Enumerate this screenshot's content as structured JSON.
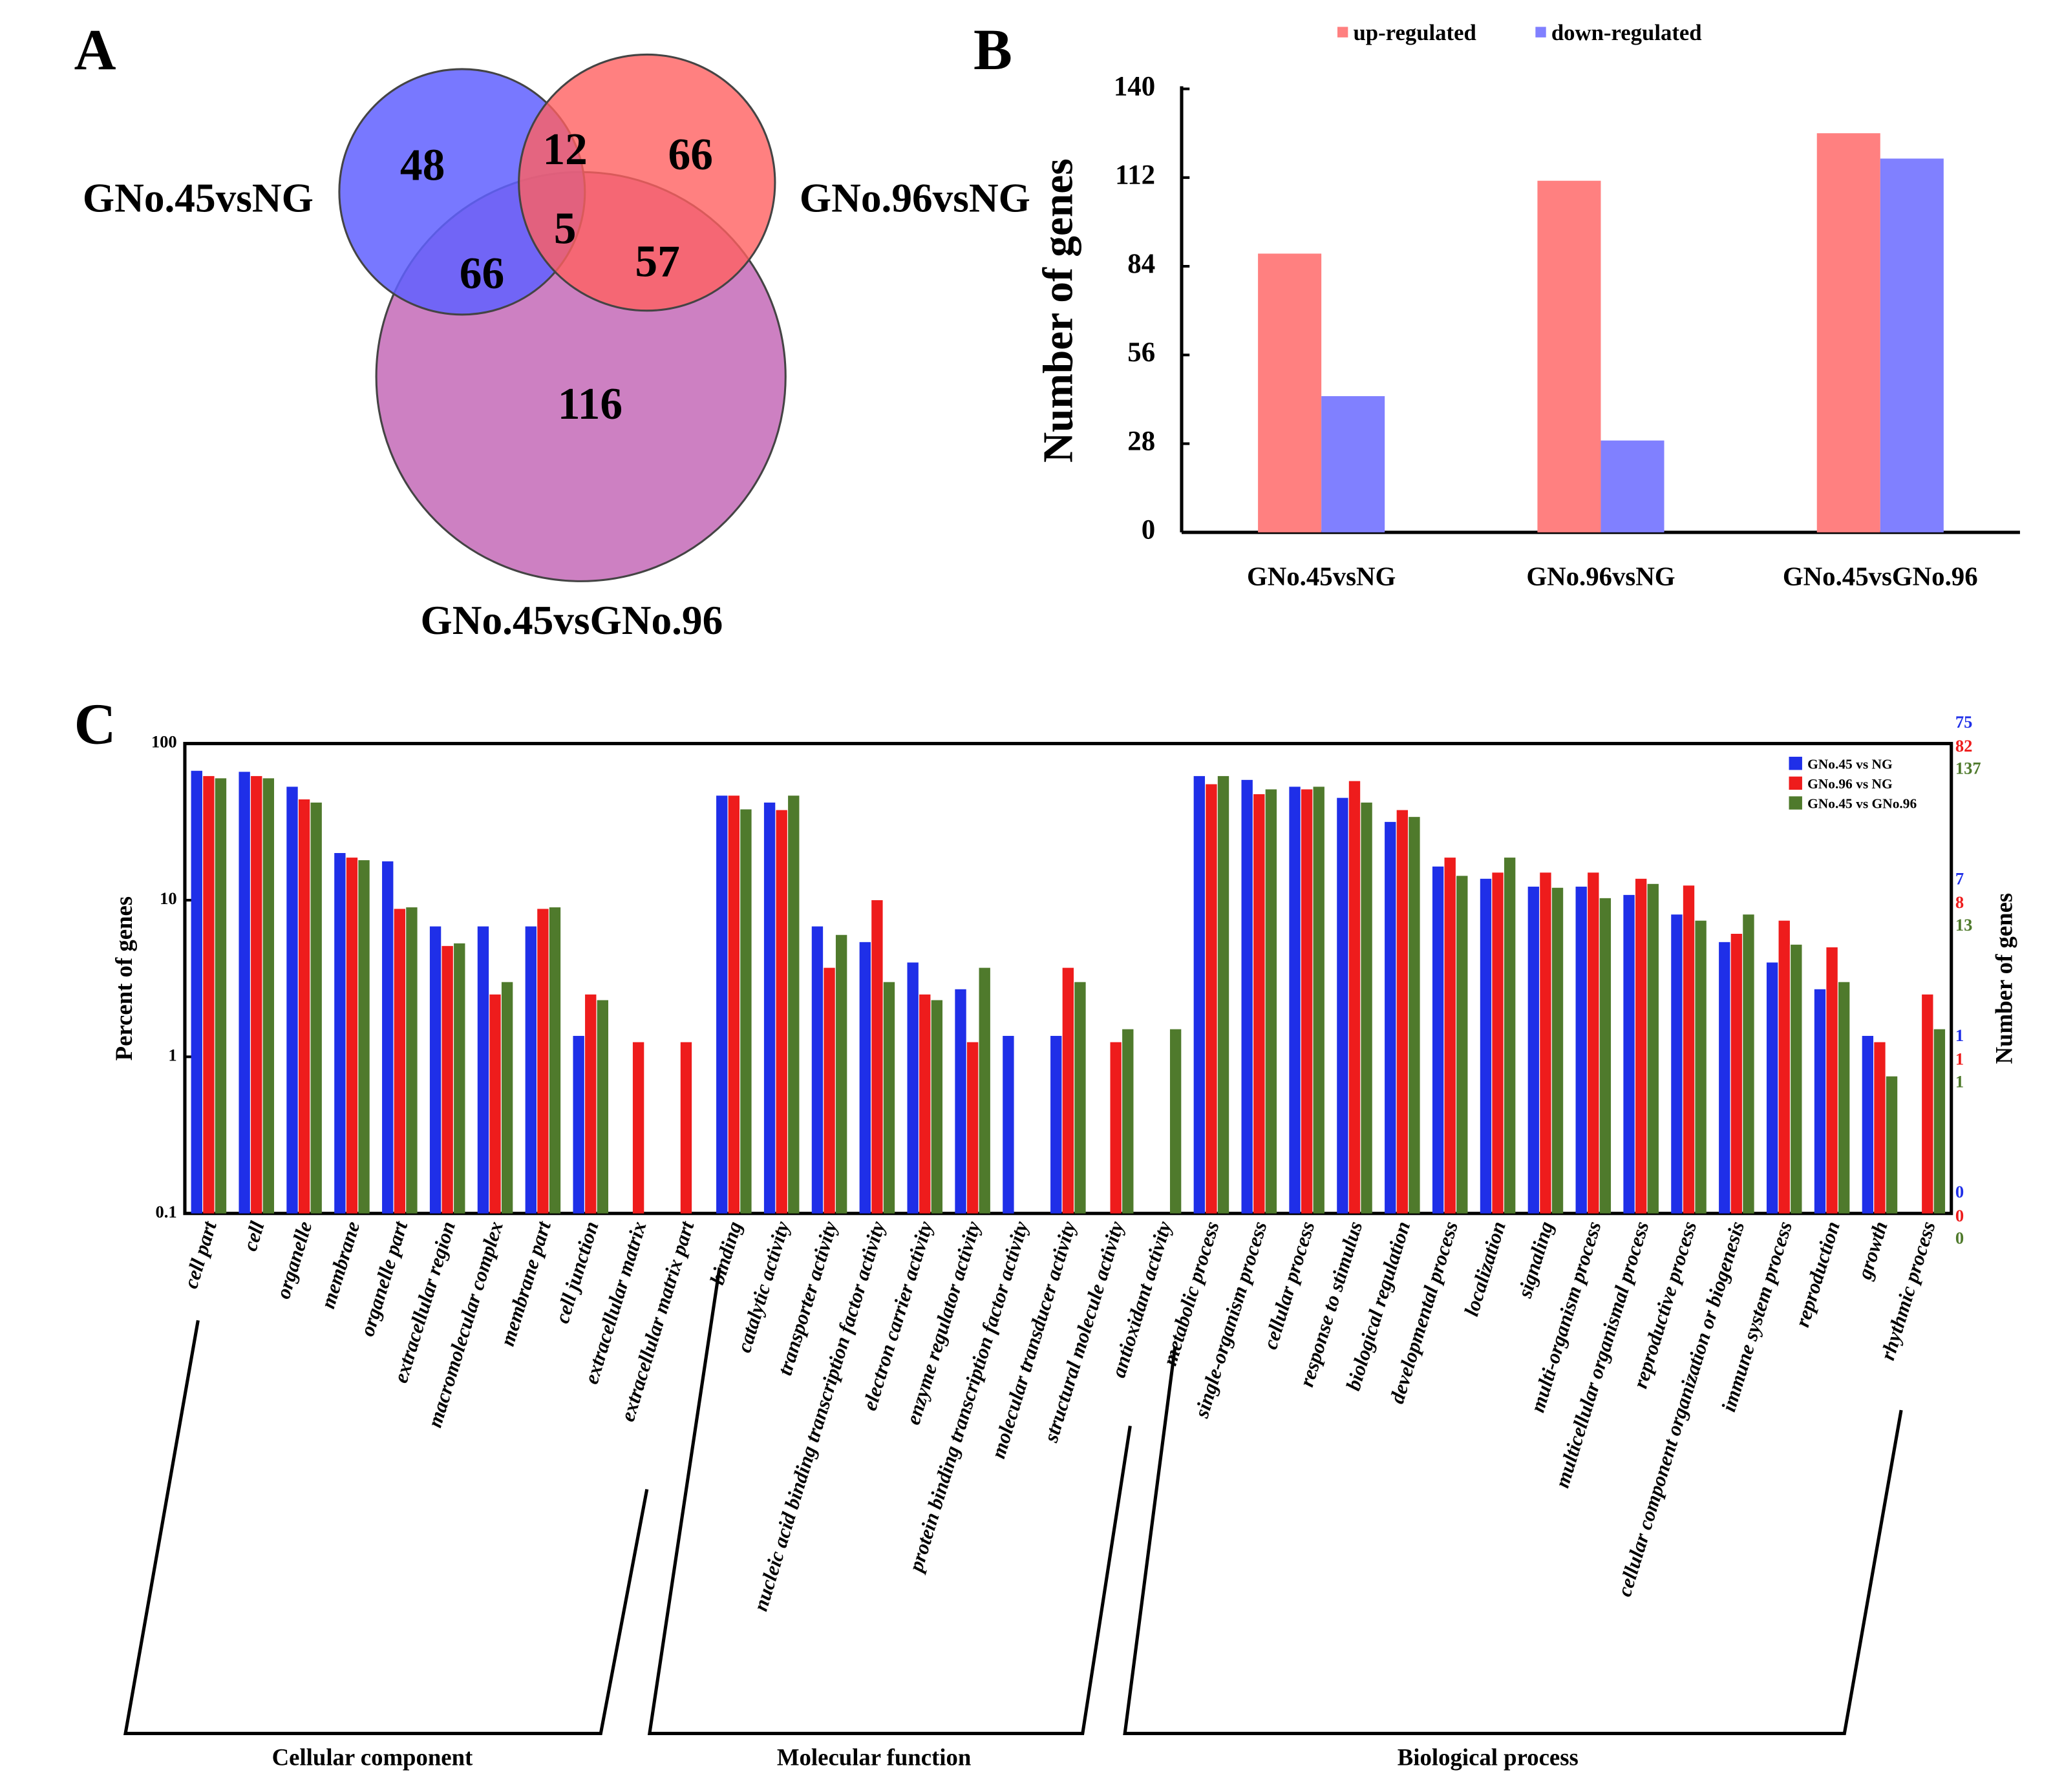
{
  "chart_data": [
    {
      "type": "venn",
      "panel": "A",
      "sets": [
        {
          "name": "GNo.45vsNG",
          "color": "#6060ff"
        },
        {
          "name": "GNo.96vsNG",
          "color": "#ff6060"
        },
        {
          "name": "GNo.45vsGNo.96",
          "color": "#b84aa8"
        }
      ],
      "values": [
        48,
        66,
        116,
        12,
        66,
        57,
        5
      ]
    },
    {
      "type": "bar",
      "panel": "B",
      "ylabel": "Number of genes",
      "categories": [
        "GNo.45vsNG",
        "GNo.96vsNG",
        "GNo.45vsGNo.96"
      ],
      "series": [
        {
          "name": "up-regulated",
          "color": "#ff8080",
          "values": [
            88,
            111,
            126
          ]
        },
        {
          "name": "down-regulated",
          "color": "#8080ff",
          "values": [
            43,
            29,
            118
          ]
        }
      ],
      "ylim": [
        0,
        140
      ],
      "yticks": [
        0,
        28,
        56,
        84,
        112,
        140
      ],
      "legend": "top"
    },
    {
      "type": "bar",
      "panel": "C",
      "ylabel": "Percent of genes",
      "y2label": "Number of genes",
      "log_scale": true,
      "categories": [
        "cell part",
        "cell",
        "organelle",
        "membrane",
        "organelle part",
        "extracellular region",
        "macromolecular complex",
        "membrane part",
        "cell junction",
        "extracellular matrix",
        "extracellular matrix part",
        "binding",
        "catalytic activity",
        "transporter activity",
        "nucleic acid binding transcription factor activity",
        "electron carrier activity",
        "enzyme regulator activity",
        "protein binding transcription factor activity",
        "molecular transducer activity",
        "structural molecule activity",
        "antioxidant activity",
        "metabolic process",
        "single-organism process",
        "cellular process",
        "response to stimulus",
        "biological regulation",
        "developmental process",
        "localization",
        "signaling",
        "multi-organism process",
        "multicellular organismal process",
        "reproductive process",
        "cellular component organization or biogenesis",
        "immune system process",
        "reproduction",
        "growth",
        "rhythmic process"
      ],
      "groups": [
        "Cellular component",
        "Molecular function",
        "Biological process"
      ],
      "series": [
        {
          "name": "GNo.45 vs NG",
          "color": "#1f2fe8",
          "y2ticks": [
            0,
            1,
            7,
            75
          ],
          "values": [
            67,
            66,
            53,
            20,
            17.7,
            6.8,
            6.8,
            6.8,
            1.36,
            null,
            null,
            46.5,
            42,
            6.8,
            5.4,
            4,
            2.7,
            1.36,
            1.36,
            null,
            null,
            62,
            58.6,
            53,
            45,
            31.6,
            16.4,
            13.7,
            12.2,
            12.2,
            10.8,
            8.1,
            5.4,
            4,
            2.7,
            1.36,
            null
          ]
        },
        {
          "name": "GNo.96 vs NG",
          "color": "#ee1c1c",
          "y2ticks": [
            0,
            1,
            8,
            82
          ],
          "values": [
            62,
            62,
            44,
            18.7,
            8.8,
            5.1,
            2.5,
            8.8,
            2.5,
            1.24,
            1.24,
            46.5,
            37.6,
            3.7,
            10,
            2.5,
            1.24,
            null,
            3.7,
            1.24,
            null,
            55,
            47.5,
            51,
            57.6,
            37.6,
            18.7,
            15,
            15,
            15,
            13.7,
            12.4,
            6.1,
            7.4,
            5,
            1.24,
            2.5
          ]
        },
        {
          "name": "GNo.45 vs GNo.96",
          "color": "#4f7a2c",
          "y2ticks": [
            0,
            1,
            13,
            137
          ],
          "values": [
            60,
            60,
            42,
            18,
            9,
            5.3,
            3,
            9,
            2.3,
            null,
            null,
            38,
            46.5,
            6,
            3,
            2.3,
            3.7,
            null,
            3,
            1.5,
            1.5,
            62,
            51,
            53,
            42,
            34,
            14.3,
            18.7,
            12,
            10.3,
            12.7,
            7.4,
            8.1,
            5.2,
            3,
            0.75,
            1.5
          ]
        }
      ],
      "ylim": [
        0.1,
        100
      ],
      "yticks": [
        0.1,
        1,
        10,
        100
      ],
      "legend": "upper right"
    }
  ]
}
